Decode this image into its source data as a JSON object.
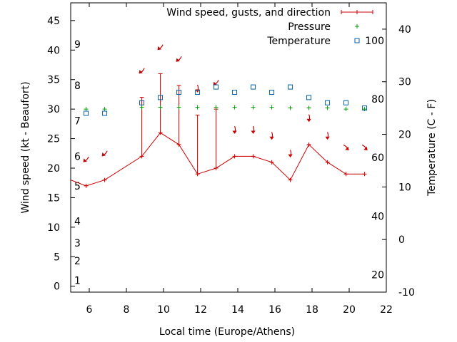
{
  "chart_data": {
    "type": "line",
    "xlabel": "Local time (Europe/Athens)",
    "ylabel_left": "Wind speed (kt - Beaufort)",
    "ylabel_right": "Temperature (C - F)",
    "xlim": [
      5,
      22
    ],
    "ylim_left": [
      -1,
      48
    ],
    "ylim_right": [
      -10,
      45
    ],
    "x_ticks": [
      6,
      8,
      10,
      12,
      14,
      16,
      18,
      20,
      22
    ],
    "y_left_ticks": [
      0,
      5,
      10,
      15,
      20,
      25,
      30,
      35,
      40,
      45
    ],
    "y_right_ticks": [
      -10,
      0,
      10,
      20,
      30,
      40
    ],
    "beaufort_labels": [
      {
        "label": "1",
        "kt": 1
      },
      {
        "label": "2",
        "kt": 4.3
      },
      {
        "label": "3",
        "kt": 7.3
      },
      {
        "label": "4",
        "kt": 11
      },
      {
        "label": "5",
        "kt": 17
      },
      {
        "label": "6",
        "kt": 22
      },
      {
        "label": "7",
        "kt": 28
      },
      {
        "label": "8",
        "kt": 34
      },
      {
        "label": "9",
        "kt": 41
      }
    ],
    "fahrenheit_labels": [
      {
        "label": "20",
        "c": -6.7
      },
      {
        "label": "40",
        "c": 4.4
      },
      {
        "label": "60",
        "c": 15.6
      },
      {
        "label": "80",
        "c": 26.7
      },
      {
        "label": "100",
        "c": 37.8
      }
    ],
    "legend_position": "top-right",
    "legend": {
      "wind": "Wind speed, gusts, and direction",
      "pressure": "Pressure",
      "temperature": "Temperature"
    },
    "colors": {
      "wind": "#cc0000",
      "pressure": "#00a000",
      "temperature": "#0060ad"
    },
    "wind": {
      "x": [
        5,
        5.83,
        6.83,
        8.83,
        9.83,
        10.83,
        11.83,
        12.83,
        13.83,
        14.83,
        15.83,
        16.83,
        17.83,
        18.83,
        19.83,
        20.83
      ],
      "speed": [
        18,
        17,
        18,
        22,
        26,
        24,
        19,
        20,
        22,
        22,
        21,
        18,
        24,
        21,
        19,
        19
      ],
      "gust": [
        null,
        null,
        null,
        32,
        36,
        34,
        29,
        30,
        null,
        null,
        null,
        null,
        null,
        null,
        null,
        null
      ]
    },
    "direction_arrows": [
      {
        "x": 5.83,
        "kt": 21.5,
        "dir": "sw"
      },
      {
        "x": 6.83,
        "kt": 22.5,
        "dir": "sw"
      },
      {
        "x": 8.83,
        "kt": 36.5,
        "dir": "sw"
      },
      {
        "x": 9.83,
        "kt": 40.5,
        "dir": "sw"
      },
      {
        "x": 10.83,
        "kt": 38.5,
        "dir": "sw"
      },
      {
        "x": 11.83,
        "kt": 33.5,
        "dir": "s"
      },
      {
        "x": 12.83,
        "kt": 34.5,
        "dir": "sw"
      },
      {
        "x": 13.83,
        "kt": 26.5,
        "dir": "s"
      },
      {
        "x": 14.83,
        "kt": 26.5,
        "dir": "s"
      },
      {
        "x": 15.83,
        "kt": 25.5,
        "dir": "s"
      },
      {
        "x": 16.83,
        "kt": 22.5,
        "dir": "s"
      },
      {
        "x": 17.83,
        "kt": 28.5,
        "dir": "s"
      },
      {
        "x": 18.83,
        "kt": 25.5,
        "dir": "s"
      },
      {
        "x": 19.83,
        "kt": 23.5,
        "dir": "se"
      },
      {
        "x": 20.83,
        "kt": 23.5,
        "dir": "se"
      }
    ],
    "pressure": {
      "x": [
        5.83,
        6.83,
        8.83,
        9.83,
        10.83,
        11.83,
        12.83,
        13.83,
        14.83,
        15.83,
        16.83,
        17.83,
        18.83,
        19.83,
        20.83
      ],
      "kt_position": [
        30,
        30,
        30.3,
        30.3,
        30.3,
        30.3,
        30.3,
        30.3,
        30.3,
        30.3,
        30.2,
        30.2,
        30.2,
        30,
        30
      ]
    },
    "temperature": {
      "x": [
        5.83,
        6.83,
        8.83,
        9.83,
        10.83,
        11.83,
        12.83,
        13.83,
        14.83,
        15.83,
        16.83,
        17.83,
        18.83,
        19.83,
        20.83
      ],
      "celsius": [
        24,
        24,
        26,
        27,
        28,
        28,
        29,
        28,
        29,
        28,
        29,
        27,
        26,
        26,
        25
      ]
    }
  }
}
